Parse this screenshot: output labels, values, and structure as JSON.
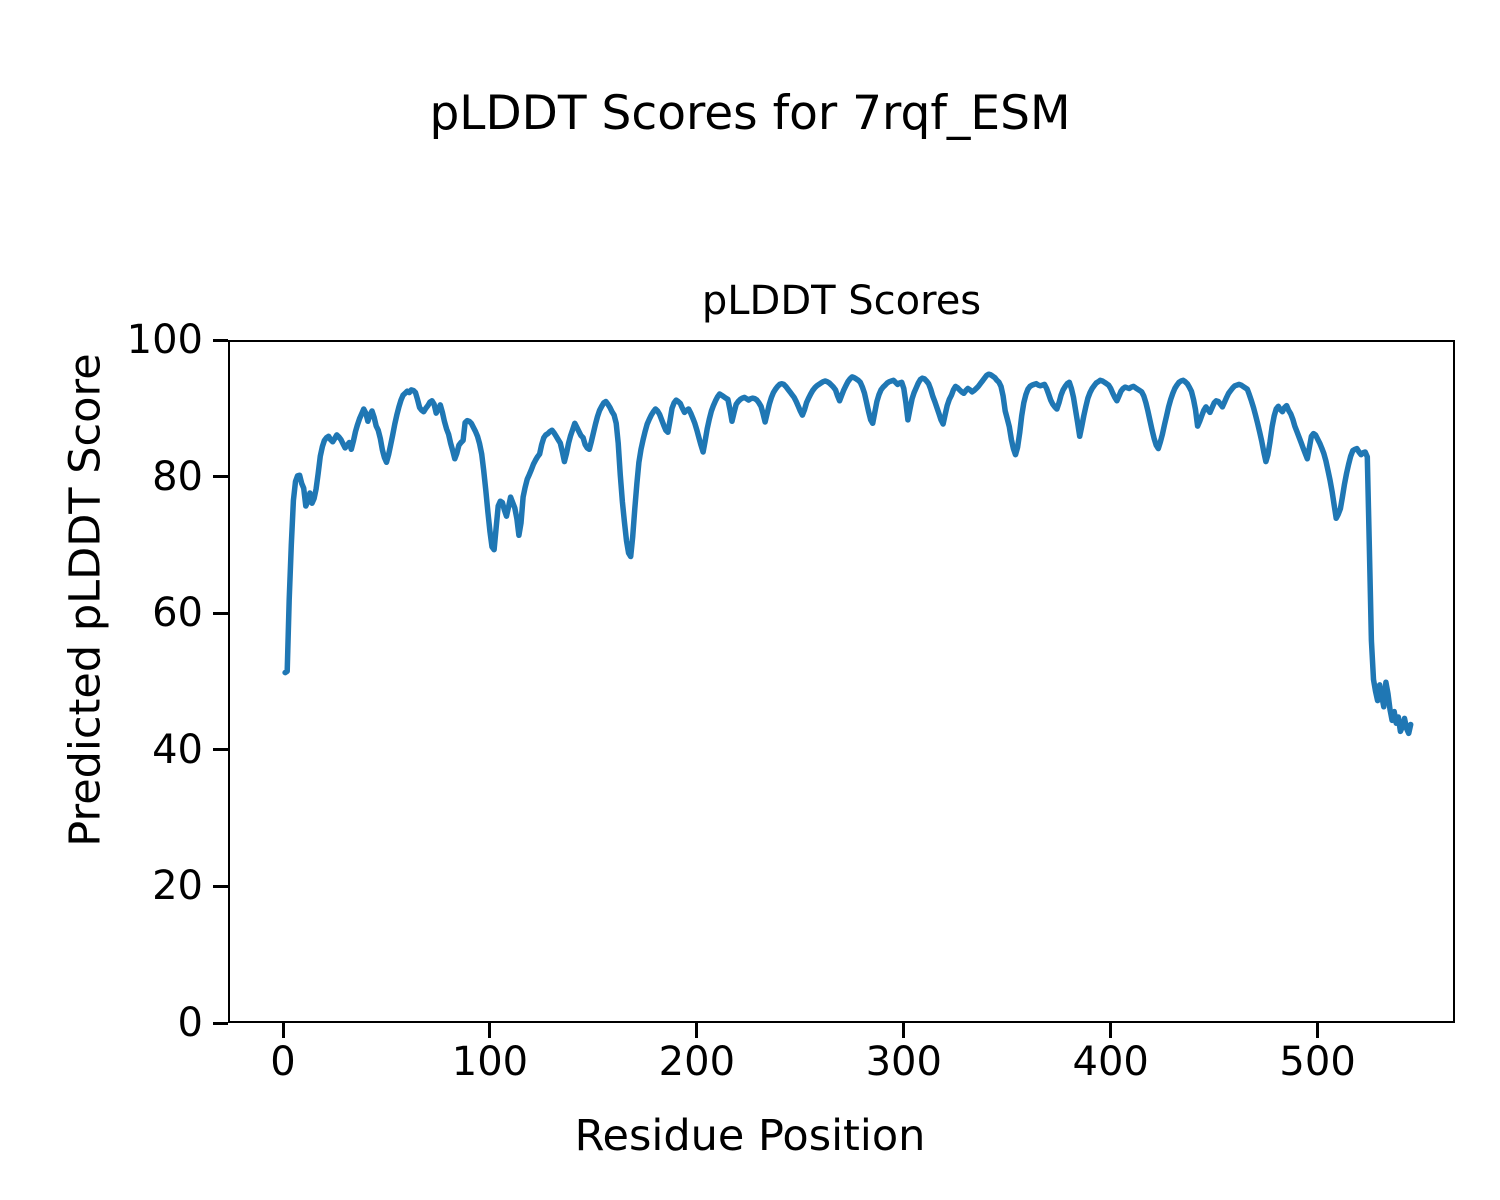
{
  "figure": {
    "suptitle": "pLDDT Scores for 7rqf_ESM",
    "background_color": "#ffffff",
    "text_color": "#000000"
  },
  "chart_data": {
    "type": "line",
    "title": "pLDDT Scores",
    "xlabel": "Residue Position",
    "ylabel": "Predicted pLDDT Score",
    "xlim": [
      -26.6,
      566.4
    ],
    "ylim": [
      0,
      100
    ],
    "x_ticks": [
      0,
      100,
      200,
      300,
      400,
      500
    ],
    "y_ticks": [
      0,
      20,
      40,
      60,
      80,
      100
    ],
    "grid": false,
    "legend_position": "none",
    "line_color": "#1f77b4",
    "line_width": 5.5,
    "series": [
      {
        "name": "pLDDT",
        "x_start": 1,
        "x_step": 1,
        "y_values": [
          51.3,
          51.5,
          62,
          70,
          76.5,
          79.3,
          80.1,
          80.2,
          79,
          78.3,
          75.7,
          76.4,
          77.6,
          76.1,
          76.8,
          78.2,
          80.5,
          83,
          84.4,
          85.3,
          85.7,
          85.9,
          85.4,
          85.1,
          85.6,
          86.1,
          85.8,
          85.4,
          84.8,
          84.2,
          84.6,
          85,
          84,
          85.2,
          86.6,
          87.6,
          88.5,
          89.2,
          89.9,
          89.3,
          88.1,
          89,
          89.6,
          88.7,
          87.4,
          86.8,
          85.6,
          83.9,
          82.8,
          82.1,
          83.2,
          84.6,
          86.1,
          87.7,
          89,
          90.2,
          91.2,
          91.9,
          92.2,
          92.5,
          92.3,
          92.7,
          92.6,
          92.3,
          91.3,
          90.1,
          89.7,
          89.5,
          90,
          90.4,
          90.9,
          91.1,
          90.6,
          89.3,
          89.9,
          90.5,
          89.4,
          88.1,
          87,
          86.2,
          84.9,
          83.8,
          82.6,
          83.4,
          84.6,
          85,
          85.3,
          87.9,
          88.2,
          88.1,
          87.8,
          87.2,
          86.6,
          85.9,
          84.8,
          83.3,
          80.9,
          78,
          74.8,
          71.9,
          69.7,
          69.3,
          72.6,
          75.7,
          76.4,
          76.2,
          75.1,
          74.2,
          75.6,
          77,
          76.2,
          75.4,
          73.8,
          71.4,
          73.2,
          77,
          78.4,
          79.6,
          80.3,
          81,
          81.8,
          82.4,
          82.9,
          83.3,
          84.7,
          85.7,
          86.1,
          86.3,
          86.6,
          86.8,
          86.4,
          85.9,
          85.4,
          84.9,
          83.6,
          82.2,
          83.4,
          84.9,
          86,
          86.9,
          87.8,
          87.2,
          86.6,
          86,
          85.7,
          84.7,
          84.2,
          84,
          85.1,
          86.4,
          87.7,
          88.8,
          89.7,
          90.3,
          90.8,
          91,
          90.6,
          90.1,
          89.5,
          89,
          87.8,
          84.9,
          80.2,
          76.3,
          73.4,
          70.6,
          68.8,
          68.3,
          71.2,
          75.3,
          79,
          82.1,
          84,
          85.4,
          86.6,
          87.7,
          88.4,
          89,
          89.5,
          89.9,
          89.6,
          89.1,
          88.3,
          87.5,
          86.8,
          86.5,
          88.2,
          90,
          90.8,
          91.2,
          91,
          90.7,
          90,
          89.4,
          89.7,
          89.9,
          89.3,
          88.6,
          87.8,
          86.8,
          85.7,
          84.6,
          83.6,
          85.2,
          87,
          88.4,
          89.6,
          90.4,
          91.1,
          91.7,
          92.1,
          91.9,
          91.7,
          91.5,
          91.3,
          89.8,
          88.1,
          89.4,
          90.6,
          91,
          91.3,
          91.5,
          91.6,
          91.4,
          91.2,
          91.4,
          91.5,
          91.4,
          91.2,
          90.8,
          90.3,
          89.2,
          88,
          89.3,
          90.6,
          91.6,
          92.3,
          92.8,
          93.2,
          93.5,
          93.6,
          93.5,
          93.2,
          92.8,
          92.4,
          92,
          91.6,
          91,
          90.3,
          89.6,
          89,
          89.8,
          90.8,
          91.5,
          92.1,
          92.6,
          93,
          93.3,
          93.5,
          93.7,
          93.9,
          94,
          93.9,
          93.7,
          93.4,
          93.1,
          92.7,
          91.8,
          91.1,
          91.9,
          92.7,
          93.3,
          93.9,
          94.3,
          94.6,
          94.5,
          94.3,
          94.1,
          93.8,
          93.1,
          92.2,
          90.9,
          89.5,
          88.3,
          87.8,
          89.4,
          91,
          92,
          92.7,
          93.1,
          93.4,
          93.7,
          93.9,
          94,
          94.1,
          93.8,
          93.5,
          93.7,
          93.8,
          92.9,
          90.8,
          88.3,
          89.9,
          91.4,
          92.3,
          93,
          93.7,
          94.2,
          94.4,
          94.3,
          94,
          93.6,
          92.8,
          91.8,
          91,
          90.1,
          89.2,
          88.3,
          87.7,
          89.1,
          90.4,
          91.3,
          91.9,
          92.7,
          93.2,
          93,
          92.7,
          92.4,
          92.2,
          92.6,
          92.9,
          92.7,
          92.4,
          92.6,
          92.9,
          93.2,
          93.6,
          94,
          94.4,
          94.8,
          95,
          94.9,
          94.7,
          94.5,
          94.1,
          93.8,
          93.2,
          91.8,
          89.6,
          88.5,
          87.3,
          85.4,
          84.1,
          83.2,
          84.3,
          86.4,
          88.9,
          90.8,
          92,
          92.8,
          93.2,
          93.4,
          93.5,
          93.6,
          93.4,
          93.3,
          93.4,
          93.5,
          92.9,
          92.1,
          91.2,
          90.6,
          90.2,
          89.9,
          90.8,
          91.9,
          92.7,
          93.2,
          93.6,
          93.8,
          92.9,
          91.6,
          89.8,
          87.9,
          85.9,
          87.3,
          88.9,
          90.3,
          91.5,
          92.3,
          92.9,
          93.3,
          93.7,
          93.9,
          94.1,
          94,
          93.8,
          93.6,
          93.4,
          92.9,
          92.2,
          91.6,
          91.1,
          91.8,
          92.5,
          92.9,
          93.1,
          93,
          92.9,
          93.1,
          93.2,
          93,
          92.8,
          92.6,
          92.4,
          91.8,
          90.8,
          89.6,
          88.2,
          86.8,
          85.6,
          84.6,
          84.1,
          85.1,
          86.2,
          87.6,
          88.9,
          90.2,
          91.3,
          92.2,
          92.9,
          93.4,
          93.8,
          94,
          94.1,
          93.9,
          93.6,
          93.1,
          92.5,
          91.3,
          89.8,
          87.4,
          88.1,
          88.9,
          89.7,
          90.2,
          89.8,
          89.4,
          90.1,
          90.8,
          91.1,
          91,
          90.6,
          90.2,
          90.9,
          91.6,
          92.2,
          92.6,
          93,
          93.3,
          93.4,
          93.5,
          93.4,
          93.2,
          93,
          92.8,
          92,
          91.1,
          90.1,
          89,
          87.8,
          86.5,
          85.2,
          83.6,
          82.2,
          83.2,
          85.1,
          87.3,
          88.9,
          89.9,
          90.3,
          89.8,
          89.5,
          90.1,
          90.4,
          89.7,
          89.2,
          88.4,
          87.4,
          86.6,
          85.8,
          85,
          84.2,
          83.4,
          82.6,
          84.2,
          85.9,
          86.3,
          86.1,
          85.5,
          84.9,
          84.2,
          83.4,
          82.3,
          80.9,
          79.5,
          77.8,
          75.8,
          73.9,
          74.5,
          75.3,
          77,
          78.9,
          80.5,
          81.8,
          83,
          83.8,
          84,
          84.1,
          83.6,
          83.2,
          83.5,
          83.6,
          82.9,
          70,
          56,
          50.3,
          48.6,
          47.2,
          49.5,
          47.8,
          46.3,
          49.9,
          48.2,
          45.9,
          44.3,
          45.6,
          43.9,
          44.8,
          42.7,
          43.4,
          44.6,
          43.1,
          42.4,
          43.7
        ]
      }
    ]
  }
}
